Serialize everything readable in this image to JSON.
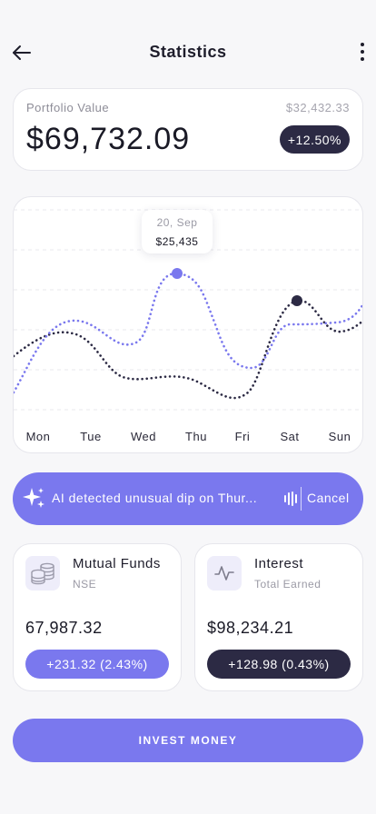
{
  "header": {
    "title": "Statistics",
    "back_icon": "arrow-left-icon",
    "more_icon": "more-vertical-icon"
  },
  "portfolio": {
    "label": "Portfolio Value",
    "previous_value": "$32,432.33",
    "value": "$69,732.09",
    "change": "+12.50%"
  },
  "chart": {
    "tooltip": {
      "date": "20, Sep",
      "value": "$25,435"
    }
  },
  "chart_data": {
    "type": "line",
    "categories": [
      "Mon",
      "Tue",
      "Wed",
      "Thu",
      "Fri",
      "Sat",
      "Sun"
    ],
    "highlight": {
      "category": "Thu",
      "date": "20, Sep",
      "value": 25435
    },
    "colors": {
      "purple": "#7a78ee",
      "dark": "#2c2a44"
    },
    "grid": true,
    "axis_values_shown": false
  },
  "ai_banner": {
    "icon": "sparkle-icon",
    "text": "AI detected unusual dip on Thur...",
    "cancel_label": "Cancel",
    "wave_icon": "audio-wave-icon"
  },
  "cards": {
    "mutual_funds": {
      "icon": "coins-icon",
      "title": "Mutual Funds",
      "subtitle": "NSE",
      "amount": "67,987.32",
      "change": "+231.32 (2.43%)"
    },
    "interest": {
      "icon": "activity-icon",
      "title": "Interest",
      "subtitle": "Total Earned",
      "amount": "$98,234.21",
      "change": "+128.98 (0.43%)"
    }
  },
  "invest_button": {
    "label": "INVEST MONEY"
  },
  "colors": {
    "accent": "#7a78ee",
    "dark": "#2c2a44",
    "background": "#f7f7f9"
  }
}
